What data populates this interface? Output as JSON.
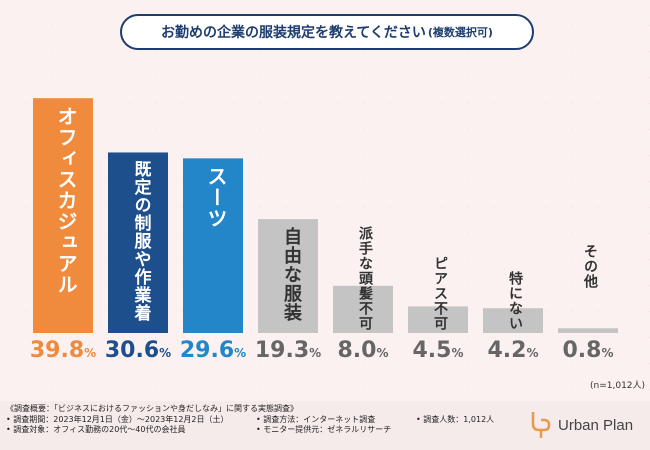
{
  "title": {
    "main": "お勤めの企業の服装規定を教えてください",
    "sub": "(複数選択可)"
  },
  "chart_data": {
    "type": "bar",
    "title": "お勤めの企業の服装規定を教えてください(複数選択可)",
    "categories": [
      "オフィスカジュアル",
      "既定の制服や作業着",
      "スーツ",
      "自由な服装",
      "派手な頭髪不可",
      "ピアス不可",
      "特にない",
      "その他"
    ],
    "values": [
      39.8,
      30.6,
      29.6,
      19.3,
      8.0,
      4.5,
      4.2,
      0.8
    ],
    "value_labels": [
      "39.8",
      "30.6",
      "29.6",
      "19.3",
      "8.0",
      "4.5",
      "4.2",
      "0.8"
    ],
    "unit": "%",
    "ylim": [
      0,
      40
    ],
    "grid": false,
    "legend": "none",
    "colors": {
      "bar_fills": [
        "#f08a3c",
        "#1d4f8c",
        "#2386c8",
        "#c4c4c4",
        "#c4c4c4",
        "#c4c4c4",
        "#c4c4c4",
        "#c4c4c4"
      ],
      "label_colors": [
        "#ffffff",
        "#ffffff",
        "#ffffff",
        "#333333",
        "#333333",
        "#333333",
        "#333333",
        "#333333"
      ],
      "value_colors": [
        "#f08a3c",
        "#1d4f8c",
        "#2386c8",
        "#666666",
        "#666666",
        "#666666",
        "#666666",
        "#666666"
      ]
    }
  },
  "sample_note": "(n=1,012人)",
  "notes": {
    "overview": "《調査概要：「ビジネスにおけるファッションや身だしなみ」に関する実態調査》",
    "period": "• 調査期間：2023年12月1日（金）〜2023年12月2日（土）",
    "target": "• 調査対象：オフィス勤務の20代〜40代の会社員",
    "method": "• 調査方法：インターネット調査",
    "provider": "• モニター提供元：ゼネラルリサーチ",
    "count": "• 調査人数：1,012人"
  },
  "logo": {
    "text": "Urban Plan",
    "icon": "up-logo-icon",
    "color": "#e89a4a"
  }
}
